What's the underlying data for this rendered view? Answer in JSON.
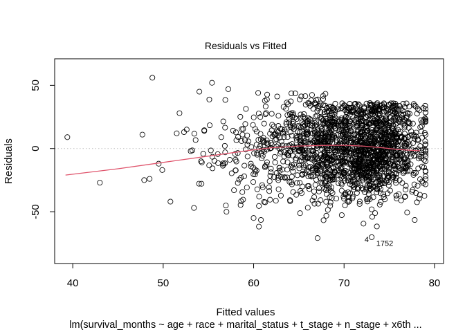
{
  "chart_data": {
    "type": "scatter",
    "title": "Residuals vs Fitted",
    "xlabel": "Fitted values",
    "ylabel": "Residuals",
    "subtitle": "lm(survival_months ~ age + race + marital_status + t_stage + n_stage + x6th ...",
    "xlim": [
      38,
      81
    ],
    "ylim": [
      -91,
      71
    ],
    "x_ticks": [
      40,
      50,
      60,
      70,
      80
    ],
    "y_ticks": [
      -50,
      0,
      50
    ],
    "x_tick_labels": [
      "40",
      "50",
      "60",
      "70",
      "80"
    ],
    "y_tick_labels": [
      "-50",
      "0",
      "50"
    ],
    "grid": false,
    "reference_line": {
      "y": 0,
      "style": "dotted",
      "color": "#bdbdbd"
    },
    "smoother": {
      "name": "lowess",
      "color": "#df536b",
      "x": [
        39.2,
        45,
        50,
        55,
        58,
        60,
        62,
        65,
        68,
        70,
        72,
        74,
        76,
        78.4
      ],
      "y": [
        -21,
        -16,
        -11,
        -6,
        -3,
        -1,
        0.6,
        2,
        2.5,
        2.6,
        2,
        0.8,
        -0.8,
        -1.8
      ]
    },
    "outlier_labels": [
      {
        "text": "4",
        "x": 72.5,
        "y": -74
      },
      {
        "text": "1752",
        "x": 74.5,
        "y": -77
      }
    ],
    "points_sample": [
      {
        "x": 39.4,
        "y": 9
      },
      {
        "x": 43,
        "y": -27
      },
      {
        "x": 47.7,
        "y": 11
      },
      {
        "x": 47.9,
        "y": -25
      },
      {
        "x": 48.8,
        "y": 56
      },
      {
        "x": 48.5,
        "y": -24
      },
      {
        "x": 49.5,
        "y": -12
      },
      {
        "x": 49.9,
        "y": -17
      },
      {
        "x": 50.8,
        "y": -42
      },
      {
        "x": 51.5,
        "y": 12
      },
      {
        "x": 51.8,
        "y": 28
      },
      {
        "x": 52.3,
        "y": 13
      },
      {
        "x": 52.6,
        "y": 15
      },
      {
        "x": 53.4,
        "y": -47
      },
      {
        "x": 54,
        "y": 45
      },
      {
        "x": 55.4,
        "y": 52
      },
      {
        "x": 57,
        "y": -50
      },
      {
        "x": 57.2,
        "y": 47
      },
      {
        "x": 60,
        "y": -55
      },
      {
        "x": 60.5,
        "y": 44
      }
    ],
    "cloud": {
      "count": 1900,
      "x_center": 73,
      "x_max": 79,
      "y_mean": 0,
      "y_sd": 21
    },
    "point_style": {
      "shape": "open-circle",
      "color": "#000000"
    }
  }
}
